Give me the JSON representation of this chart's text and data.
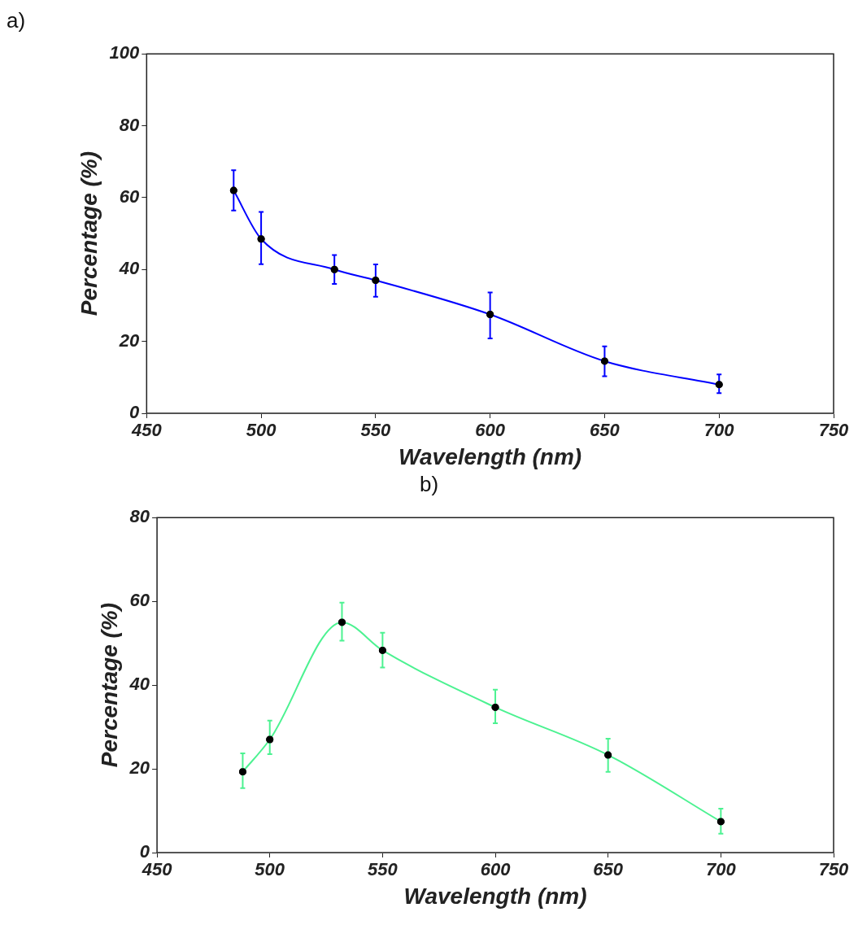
{
  "chart_data": [
    {
      "type": "line",
      "title": "a)",
      "xlabel": "Wavelength (nm)",
      "ylabel": "Percentage (%)",
      "x": [
        488,
        500,
        532,
        550,
        600,
        650,
        700
      ],
      "values": [
        62,
        48.5,
        40,
        37,
        27.5,
        14.5,
        8
      ],
      "errors": [
        [
          56.4,
          67.6
        ],
        [
          41.5,
          56
        ],
        [
          36,
          44
        ],
        [
          32.4,
          41.4
        ],
        [
          20.8,
          33.6
        ],
        [
          10.3,
          18.6
        ],
        [
          5.6,
          10.8
        ]
      ],
      "color": "#0000ff",
      "marker": "circle",
      "xlim": [
        450,
        750
      ],
      "xticks": [
        450,
        500,
        550,
        600,
        650,
        700,
        750
      ],
      "ylim": [
        0,
        100
      ],
      "yticks": [
        0,
        20,
        40,
        60,
        80,
        100
      ]
    },
    {
      "type": "line",
      "title": "b)",
      "xlabel": "Wavelength (nm)",
      "ylabel": "Percentage (%)",
      "x": [
        488,
        500,
        532,
        550,
        600,
        650,
        700
      ],
      "values": [
        19.3,
        27,
        55,
        48.3,
        34.7,
        23.3,
        7.4
      ],
      "errors": [
        [
          15.4,
          23.7
        ],
        [
          23.5,
          31.5
        ],
        [
          50.6,
          59.7
        ],
        [
          44.2,
          52.5
        ],
        [
          30.9,
          38.9
        ],
        [
          19.3,
          27.2
        ],
        [
          4.5,
          10.5
        ]
      ],
      "color": "#4cf291",
      "marker": "circle",
      "xlim": [
        450,
        750
      ],
      "xticks": [
        450,
        500,
        550,
        600,
        650,
        700,
        750
      ],
      "ylim": [
        0,
        80
      ],
      "yticks": [
        0,
        20,
        40,
        60,
        80
      ]
    }
  ]
}
